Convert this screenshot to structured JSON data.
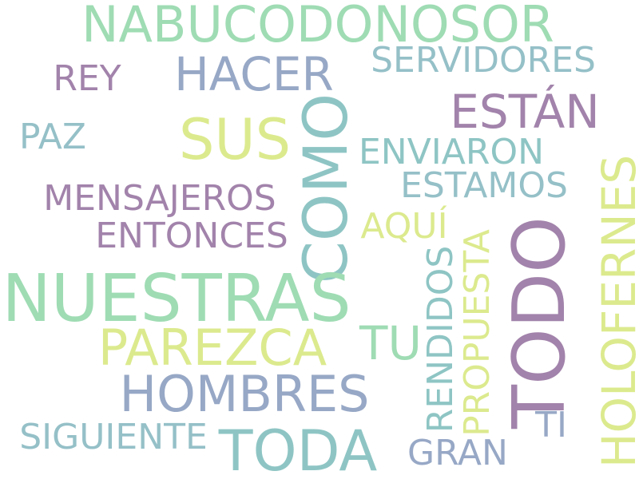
{
  "words": {
    "nabucodonosor": "NABUCODONOSOR",
    "hacer": "HACER",
    "servidores": "SERVIDORES",
    "rey": "REY",
    "estan": "ESTÁN",
    "sus": "SUS",
    "como": "COMO",
    "paz": "PAZ",
    "enviaron": "ENVIARON",
    "estamos": "ESTAMOS",
    "mensajeros": "MENSAJEROS",
    "holofernes": "HOLOFERNES",
    "aqui": "AQUÍ",
    "entonces": "ENTONCES",
    "propuesta": "PROPUESTA",
    "rendidos": "RENDIDOS",
    "todo": "TODO",
    "nuestras": "NUESTRAS",
    "tu": "TU",
    "parezca": "PAREZCA",
    "hombres": "HOMBRES",
    "ti": "TI",
    "siguiente": "SIGUIENTE",
    "toda": "TODA",
    "gran": "GRAN"
  },
  "colors": {
    "mint": "#9fdcb4",
    "blue_grey": "#97a8c6",
    "teal": "#8ec5c4",
    "purple": "#a283ab",
    "lime": "#dcea8e",
    "teal_grey": "#95c0c8"
  }
}
